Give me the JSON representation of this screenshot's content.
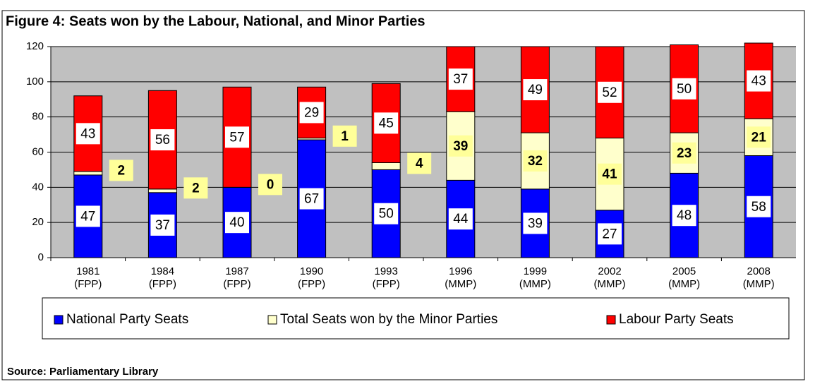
{
  "chart_data": {
    "type": "stacked-bar",
    "title": "Figure 4: Seats won  by the Labour, National, and Minor Parties",
    "source": "Source: Parliamentary Library",
    "categories": [
      "1981\n(FPP)",
      "1984\n(FPP)",
      "1987\n(FPP)",
      "1990\n(FPP)",
      "1993\n(FPP)",
      "1996\n(MMP)",
      "1999\n(MMP)",
      "2002\n(MMP)",
      "2005\n(MMP)",
      "2008\n(MMP)"
    ],
    "series": [
      {
        "name": "National Party Seats",
        "color": "#0000ff",
        "values": [
          47,
          37,
          40,
          67,
          50,
          44,
          39,
          27,
          48,
          58
        ]
      },
      {
        "name": "Total Seats won by the Minor Parties",
        "color": "#ffffcc",
        "values": [
          2,
          2,
          0,
          1,
          4,
          39,
          32,
          41,
          23,
          21
        ]
      },
      {
        "name": "Labour Party Seats",
        "color": "#ff0000",
        "values": [
          43,
          56,
          57,
          29,
          45,
          37,
          49,
          52,
          50,
          43
        ]
      }
    ],
    "ylim": [
      0,
      120
    ],
    "yticks": [
      0,
      20,
      40,
      60,
      80,
      100,
      120
    ],
    "grid": true,
    "legend": "bottom"
  }
}
